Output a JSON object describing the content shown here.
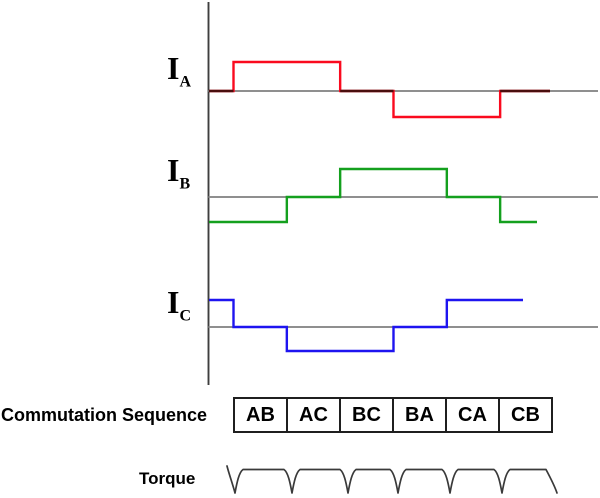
{
  "phase_labels": {
    "a": {
      "base": "I",
      "sub": "A"
    },
    "b": {
      "base": "I",
      "sub": "B"
    },
    "c": {
      "base": "I",
      "sub": "C"
    }
  },
  "commutation": {
    "title": "Commutation Sequence",
    "cells": [
      "AB",
      "AC",
      "BC",
      "BA",
      "CA",
      "CB"
    ]
  },
  "torque": {
    "label": "Torque"
  },
  "colors": {
    "phase_a": "#fa0a1e",
    "phase_a_on_zero": "#4a0e0e",
    "phase_b": "#14a01e",
    "phase_c": "#1e14f0",
    "baseline": "#8f8f8f",
    "axis": "#3e3e3e",
    "outline": "#3a3a3a"
  },
  "chart_data": {
    "type": "line",
    "segments": [
      "pre",
      "AB",
      "AC",
      "BC",
      "BA",
      "CA",
      "CB"
    ],
    "levels_scale": [
      -1,
      0,
      1
    ],
    "series": [
      {
        "name": "IA",
        "levels": [
          0,
          1,
          1,
          0,
          -1,
          -1,
          0
        ]
      },
      {
        "name": "IB",
        "levels": [
          -1,
          -1,
          0,
          1,
          1,
          0,
          -1
        ]
      },
      {
        "name": "IC",
        "levels": [
          1,
          0,
          -1,
          -1,
          0,
          1,
          1
        ]
      }
    ],
    "torque_pulses": 6
  }
}
